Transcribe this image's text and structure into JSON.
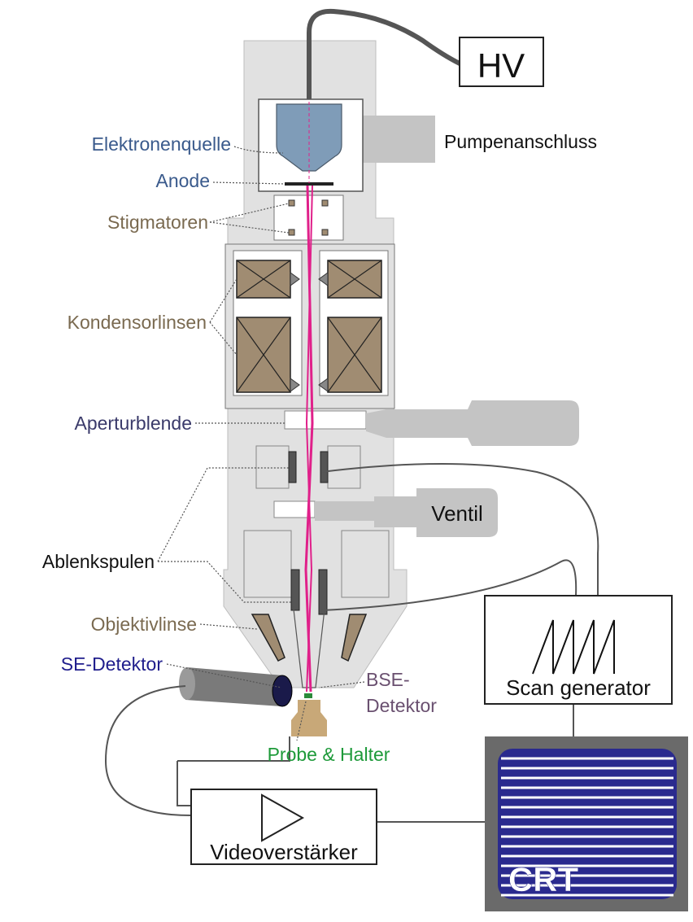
{
  "labels": {
    "hv": "HV",
    "pump": "Pumpenanschluss",
    "source": "Elektronenquelle",
    "anode": "Anode",
    "stigmators": "Stigmatoren",
    "condenser": "Kondensorlinsen",
    "aperture": "Aperturblende",
    "valve": "Ventil",
    "deflection": "Ablenkspulen",
    "objective": "Objektivlinse",
    "se_detector": "SE-Detektor",
    "bse_line1": "BSE-",
    "bse_line2": "Detektor",
    "sample": "Probe & Halter",
    "scan_generator": "Scan generator",
    "video_amp": "Videoverstärker",
    "crt": "CRT"
  },
  "colors": {
    "column": "#e1e1e1",
    "column_dark": "#c4c4c4",
    "coil": "#a08c72",
    "beam": "#e0208a",
    "source_blue": "#7f9cb8",
    "label_blue": "#3a5a8c",
    "label_brown": "#7a6a50",
    "label_green": "#1e9a3a",
    "label_navy": "#1f1d8c",
    "label_mauve": "#6a5070",
    "crt_bezel": "#6a6a6a",
    "crt_screen": "#2a2a8e"
  }
}
